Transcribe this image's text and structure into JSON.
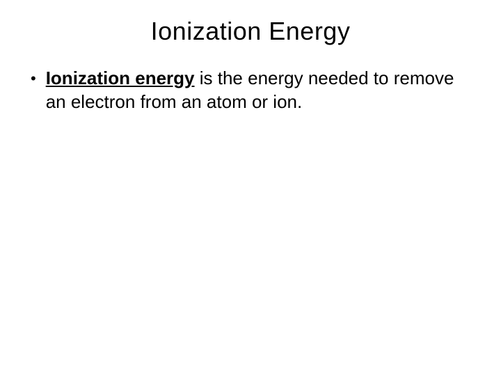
{
  "slide": {
    "title": "Ionization Energy",
    "bullet": {
      "term": "Ionization energy",
      "definition_rest": " is the energy needed to remove an electron from an atom or ion."
    }
  },
  "styling": {
    "background_color": "#ffffff",
    "text_color": "#000000",
    "title_fontsize": 36,
    "body_fontsize": 26,
    "font_family": "Arial"
  }
}
